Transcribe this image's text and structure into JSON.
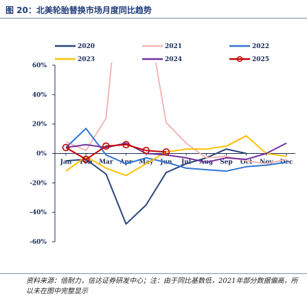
{
  "title": "图 20：北美轮胎替换市场月度同比趋势",
  "source": "资料来源：倍耐力，信达证券研发中心；注：由于同比基数低，2021年部分数据偏高，所以未在图中完整显示",
  "chart_data": {
    "type": "line",
    "title": "",
    "xlabel": "",
    "ylabel": "",
    "categories": [
      "Jan",
      "Feb",
      "Mar",
      "Apr",
      "May",
      "Jun",
      "Jul",
      "Aug",
      "Sep",
      "Oct",
      "Nov",
      "Dec"
    ],
    "ylim": [
      -60,
      60
    ],
    "yticks": [
      "60%",
      "40%",
      "20%",
      "0%",
      "-20%",
      "-40%",
      "-60%"
    ],
    "ytick_values": [
      60,
      40,
      20,
      0,
      -20,
      -40,
      -60
    ],
    "grid": false,
    "legend_position": "top",
    "series": [
      {
        "name": "2020",
        "color": "#264478",
        "values": [
          -5,
          -4,
          -14,
          -48,
          -35,
          -13,
          -7,
          -3,
          3,
          0,
          null,
          null
        ]
      },
      {
        "name": "2021",
        "color": "#f4b6b6",
        "values": [
          8,
          2,
          24,
          160,
          100,
          21,
          7,
          -3,
          -2,
          -5,
          -7,
          -4
        ]
      },
      {
        "name": "2022",
        "color": "#2e75d6",
        "values": [
          4,
          17,
          -1,
          -7,
          -3,
          -6,
          -10,
          -11,
          -12,
          -9,
          -8,
          -6
        ]
      },
      {
        "name": "2023",
        "color": "#ffc000",
        "values": [
          -12,
          -2,
          -10,
          -15,
          -7,
          1,
          3,
          3,
          5,
          12,
          0,
          -2
        ]
      },
      {
        "name": "2024",
        "color": "#7030a0",
        "values": [
          4,
          6,
          4,
          7,
          0,
          -1,
          -3,
          -6,
          -3,
          -4,
          0,
          7
        ]
      },
      {
        "name": "2025",
        "color": "#c00000",
        "values": [
          4,
          -4,
          5,
          6,
          2,
          1,
          null,
          null,
          null,
          null,
          null,
          null
        ]
      }
    ]
  }
}
